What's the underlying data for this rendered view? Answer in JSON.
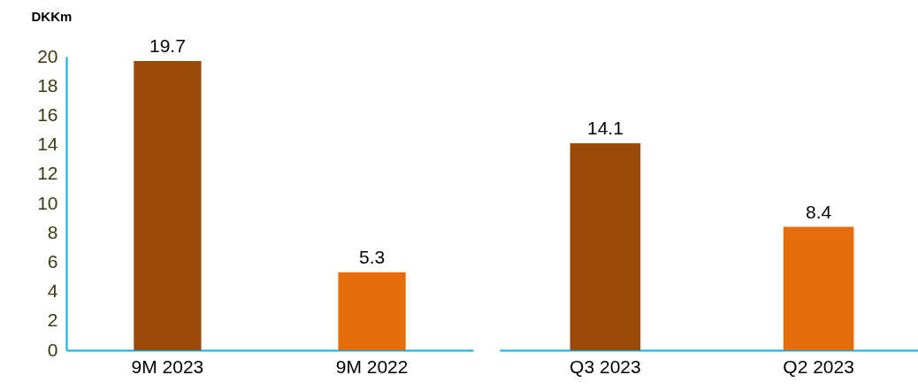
{
  "chart_data": [
    {
      "type": "bar",
      "ylabel": "DKKm",
      "categories": [
        "9M 2023",
        "9M 2022"
      ],
      "values": [
        19.7,
        5.3
      ],
      "colors": [
        "#994a08",
        "#e46c0a"
      ],
      "ylim": [
        0,
        20
      ],
      "yticks": [
        0,
        2,
        4,
        6,
        8,
        10,
        12,
        14,
        16,
        18,
        20
      ],
      "data_labels": true,
      "grid": false
    },
    {
      "type": "bar",
      "categories": [
        "Q3 2023",
        "Q2 2023"
      ],
      "values": [
        14.1,
        8.4
      ],
      "colors": [
        "#994a08",
        "#e46c0a"
      ],
      "ylim": [
        0,
        20
      ],
      "data_labels": true,
      "grid": false,
      "tick_labels": "x"
    }
  ]
}
